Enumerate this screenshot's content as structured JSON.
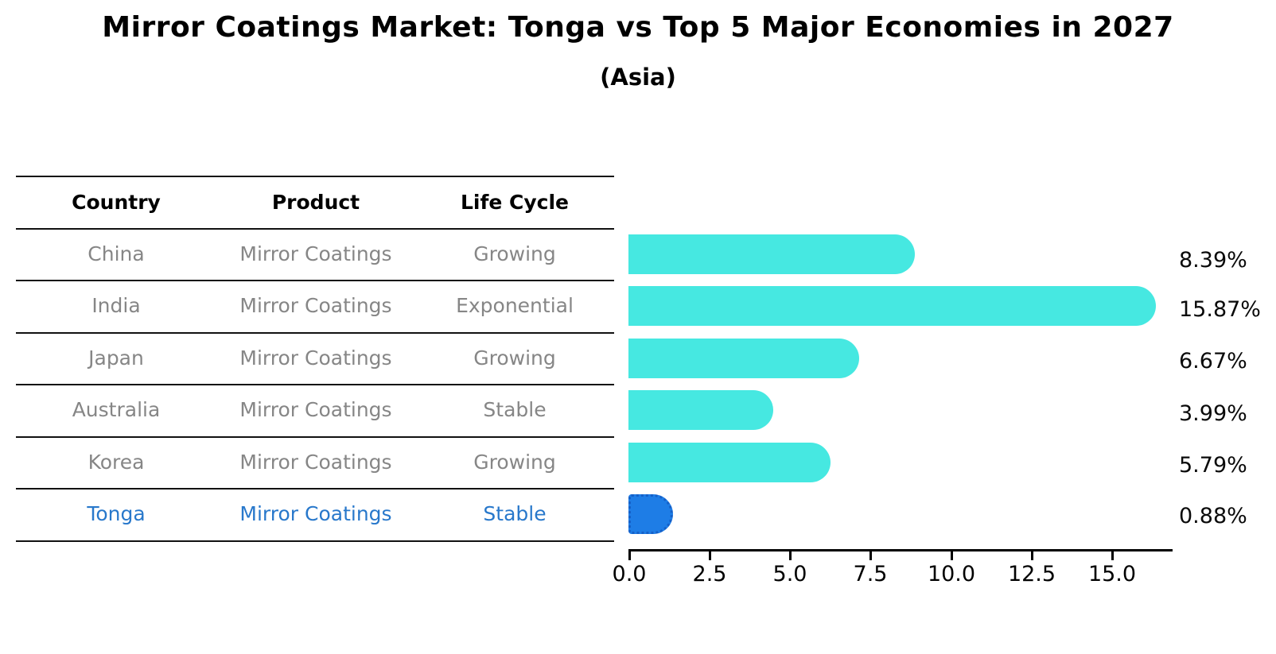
{
  "chart_data": {
    "type": "bar",
    "orientation": "horizontal",
    "title": "Mirror Coatings Market: Tonga vs Top 5 Major Economies in 2027",
    "subtitle": "(Asia)",
    "categories": [
      "China",
      "India",
      "Japan",
      "Australia",
      "Korea",
      "Tonga"
    ],
    "values": [
      8.39,
      15.87,
      6.67,
      3.99,
      5.79,
      0.88
    ],
    "value_labels": [
      "8.39%",
      "15.87%",
      "6.67%",
      "3.99%",
      "5.79%",
      "0.88%"
    ],
    "x_ticks": [
      "0.0",
      "2.5",
      "5.0",
      "7.5",
      "10.0",
      "12.5",
      "15.0"
    ],
    "xlim": [
      0,
      16.8
    ],
    "grid": false,
    "legend": false,
    "bar_color": "#46E8E1",
    "highlight_index": 5,
    "highlight_color": "#1E7DE6",
    "highlight_border_color": "#1560C8"
  },
  "table": {
    "headers": [
      "Country",
      "Product",
      "Life Cycle"
    ],
    "rows": [
      {
        "country": "China",
        "product": "Mirror Coatings",
        "life_cycle": "Growing",
        "highlight": false
      },
      {
        "country": "India",
        "product": "Mirror Coatings",
        "life_cycle": "Exponential",
        "highlight": false
      },
      {
        "country": "Japan",
        "product": "Mirror Coatings",
        "life_cycle": "Growing",
        "highlight": false
      },
      {
        "country": "Australia",
        "product": "Mirror Coatings",
        "life_cycle": "Stable",
        "highlight": false
      },
      {
        "country": "Korea",
        "product": "Mirror Coatings",
        "life_cycle": "Growing",
        "highlight": false
      },
      {
        "country": "Tonga",
        "product": "Mirror Coatings",
        "life_cycle": "Stable",
        "highlight": true
      }
    ]
  },
  "colors": {
    "text_black": "#000000",
    "table_text_gray": "#868686",
    "highlight_text": "#2878CB",
    "line_black": "#111111"
  }
}
